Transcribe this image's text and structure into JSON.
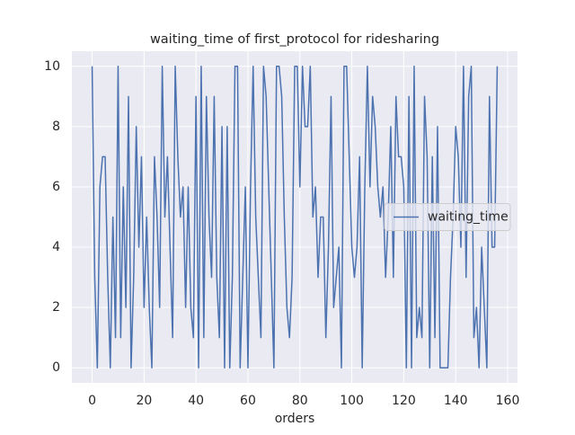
{
  "chart_data": {
    "type": "line",
    "title": "waiting_time of first_protocol for ridesharing",
    "x_label": "orders",
    "x": [
      0,
      1,
      2,
      3,
      4,
      5,
      6,
      7,
      8,
      9,
      10,
      11,
      12,
      13,
      14,
      15,
      16,
      17,
      18,
      19,
      20,
      21,
      22,
      23,
      24,
      25,
      26,
      27,
      28,
      29,
      30,
      31,
      32,
      33,
      34,
      35,
      36,
      37,
      38,
      39,
      40,
      41,
      42,
      43,
      44,
      45,
      46,
      47,
      48,
      49,
      50,
      51,
      52,
      53,
      54,
      55,
      56,
      57,
      58,
      59,
      60,
      61,
      62,
      63,
      64,
      65,
      66,
      67,
      68,
      69,
      70,
      71,
      72,
      73,
      74,
      75,
      76,
      77,
      78,
      79,
      80,
      81,
      82,
      83,
      84,
      85,
      86,
      87,
      88,
      89,
      90,
      91,
      92,
      93,
      94,
      95,
      96,
      97,
      98,
      99,
      100,
      101,
      102,
      103,
      104,
      105,
      106,
      107,
      108,
      109,
      110,
      111,
      112,
      113,
      114,
      115,
      116,
      117,
      118,
      119,
      120,
      121,
      122,
      123,
      124,
      125,
      126,
      127,
      128,
      129,
      130,
      131,
      132,
      133,
      134,
      135,
      136,
      137,
      138,
      139,
      140,
      141,
      142,
      143,
      144,
      145,
      146,
      147,
      148,
      149,
      150,
      151,
      152,
      153,
      154,
      155,
      156
    ],
    "series": [
      {
        "name": "waiting_time",
        "color": "#4c72b0",
        "values": [
          10,
          3,
          0,
          6,
          7,
          7,
          3,
          0,
          5,
          1,
          10,
          1,
          6,
          2,
          9,
          0,
          3,
          8,
          4,
          7,
          2,
          5,
          2,
          0,
          7,
          5,
          2,
          10,
          5,
          7,
          4,
          1,
          10,
          7,
          5,
          6,
          2,
          6,
          2,
          1,
          9,
          0,
          10,
          1,
          9,
          5,
          3,
          9,
          3,
          1,
          8,
          0,
          8,
          0,
          3,
          10,
          10,
          0,
          3,
          6,
          0,
          6,
          10,
          5,
          3,
          1,
          10,
          9,
          6,
          3,
          0,
          10,
          10,
          9,
          5,
          2,
          1,
          3,
          10,
          10,
          6,
          10,
          8,
          8,
          10,
          5,
          6,
          3,
          5,
          5,
          1,
          4,
          9,
          2,
          3,
          4,
          0,
          10,
          10,
          7,
          4,
          3,
          4,
          7,
          0,
          6,
          10,
          6,
          9,
          8,
          6,
          5,
          6,
          3,
          5,
          8,
          3,
          9,
          7,
          7,
          6,
          0,
          9,
          0,
          10,
          1,
          2,
          1,
          9,
          7,
          0,
          7,
          1,
          8,
          0,
          0,
          0,
          0,
          3,
          5,
          8,
          7,
          4,
          10,
          3,
          9,
          10,
          1,
          2,
          0,
          4,
          2,
          0,
          9,
          4,
          4,
          10
        ]
      }
    ],
    "xlim": [
      -7.8,
      163.8
    ],
    "ylim": [
      -0.5,
      10.5
    ],
    "xticks": [
      0,
      20,
      40,
      60,
      80,
      100,
      120,
      140,
      160
    ],
    "yticks": [
      0,
      2,
      4,
      6,
      8,
      10
    ],
    "grid": true,
    "legend": "center right"
  }
}
